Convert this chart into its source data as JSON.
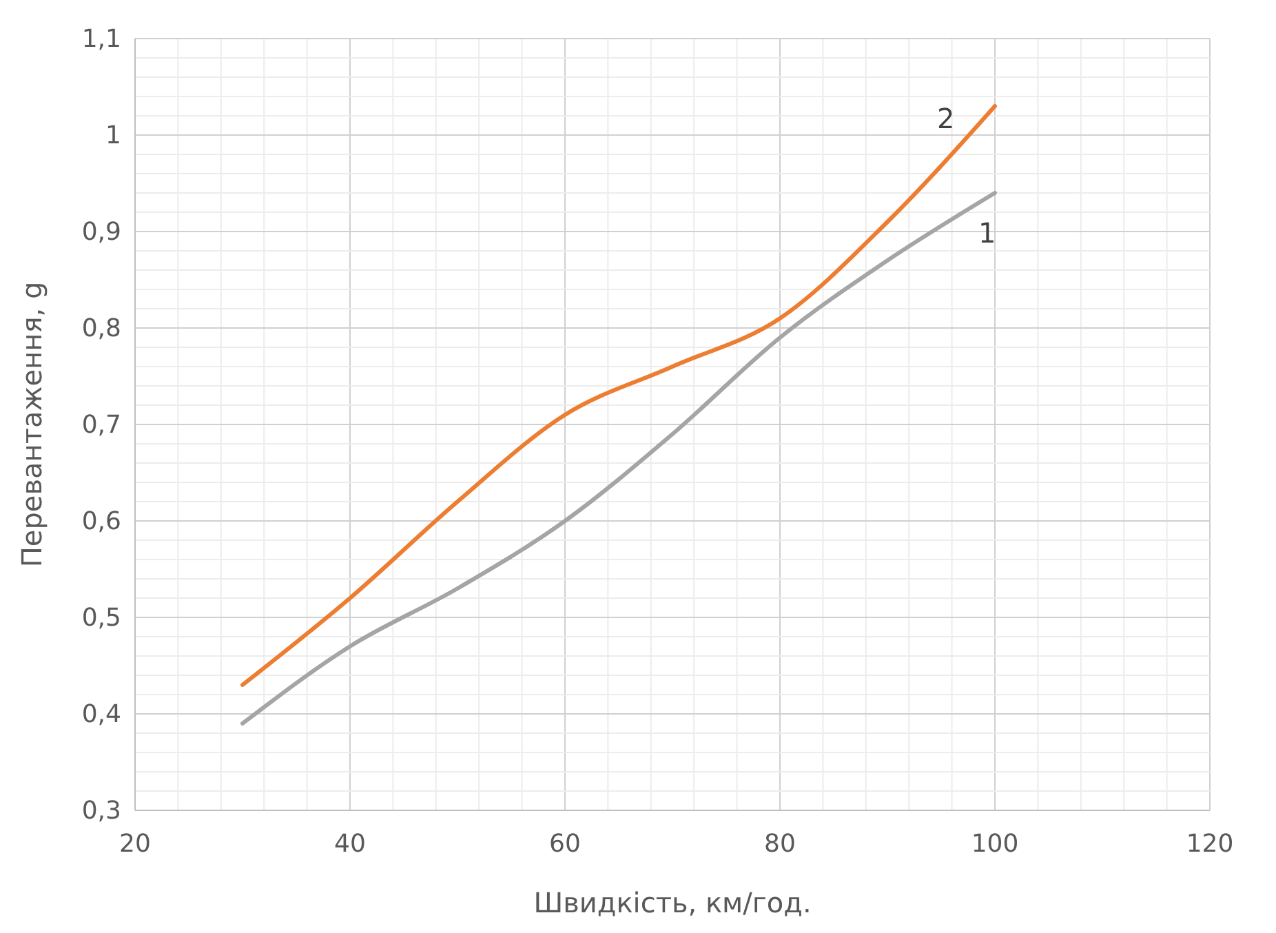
{
  "chart_data": {
    "type": "line",
    "xlabel": "Швидкість, км/год.",
    "ylabel": "Перевантаження, g",
    "x": [
      30,
      40,
      50,
      60,
      70,
      80,
      90,
      100
    ],
    "series": [
      {
        "name": "1",
        "color": "#a5a5a5",
        "values": [
          0.39,
          0.47,
          0.53,
          0.6,
          0.69,
          0.79,
          0.87,
          0.94
        ]
      },
      {
        "name": "2",
        "color": "#ed7d31",
        "values": [
          0.43,
          0.52,
          0.62,
          0.71,
          0.76,
          0.81,
          0.91,
          1.03
        ]
      }
    ],
    "xlim": [
      20,
      120
    ],
    "ylim": [
      0.3,
      1.1
    ],
    "xticks": [
      20,
      {
        "value": 24,
        "label": null
      },
      {
        "value": 28,
        "label": null
      },
      {
        "value": 32,
        "label": null
      },
      {
        "value": 36,
        "label": null
      },
      40,
      {
        "value": 44,
        "label": null
      },
      {
        "value": 48,
        "label": null
      },
      {
        "value": 52,
        "label": null
      },
      {
        "value": 56,
        "label": null
      },
      60,
      {
        "value": 64,
        "label": null
      },
      {
        "value": 68,
        "label": null
      },
      {
        "value": 72,
        "label": null
      },
      {
        "value": 76,
        "label": null
      },
      80,
      {
        "value": 84,
        "label": null
      },
      {
        "value": 88,
        "label": null
      },
      {
        "value": 92,
        "label": null
      },
      {
        "value": 96,
        "label": null
      },
      100,
      {
        "value": 104,
        "label": null
      },
      {
        "value": 108,
        "label": null
      },
      {
        "value": 112,
        "label": null
      },
      {
        "value": 116,
        "label": null
      },
      120
    ],
    "yticks": [
      {
        "value": 0.3,
        "label": "0,3"
      },
      {
        "value": 0.32,
        "label": null
      },
      {
        "value": 0.34,
        "label": null
      },
      {
        "value": 0.36,
        "label": null
      },
      {
        "value": 0.38,
        "label": null
      },
      {
        "value": 0.4,
        "label": "0,4"
      },
      {
        "value": 0.42,
        "label": null
      },
      {
        "value": 0.44,
        "label": null
      },
      {
        "value": 0.46,
        "label": null
      },
      {
        "value": 0.48,
        "label": null
      },
      {
        "value": 0.5,
        "label": "0,5"
      },
      {
        "value": 0.52,
        "label": null
      },
      {
        "value": 0.54,
        "label": null
      },
      {
        "value": 0.56,
        "label": null
      },
      {
        "value": 0.58,
        "label": null
      },
      {
        "value": 0.6,
        "label": "0,6"
      },
      {
        "value": 0.62,
        "label": null
      },
      {
        "value": 0.64,
        "label": null
      },
      {
        "value": 0.66,
        "label": null
      },
      {
        "value": 0.68,
        "label": null
      },
      {
        "value": 0.7,
        "label": "0,7"
      },
      {
        "value": 0.72,
        "label": null
      },
      {
        "value": 0.74,
        "label": null
      },
      {
        "value": 0.76,
        "label": null
      },
      {
        "value": 0.78,
        "label": null
      },
      {
        "value": 0.8,
        "label": "0,8"
      },
      {
        "value": 0.82,
        "label": null
      },
      {
        "value": 0.84,
        "label": null
      },
      {
        "value": 0.86,
        "label": null
      },
      {
        "value": 0.88,
        "label": null
      },
      {
        "value": 0.9,
        "label": "0,9"
      },
      {
        "value": 0.92,
        "label": null
      },
      {
        "value": 0.94,
        "label": null
      },
      {
        "value": 0.96,
        "label": null
      },
      {
        "value": 0.98,
        "label": null
      },
      {
        "value": 1,
        "label": "1"
      },
      {
        "value": 1.02,
        "label": null
      },
      {
        "value": 1.04,
        "label": null
      },
      {
        "value": 1.06,
        "label": null
      },
      {
        "value": 1.08,
        "label": null
      },
      {
        "value": 1.1,
        "label": "1,1"
      }
    ],
    "grid": true,
    "marker": "none",
    "line_style": "solid"
  }
}
